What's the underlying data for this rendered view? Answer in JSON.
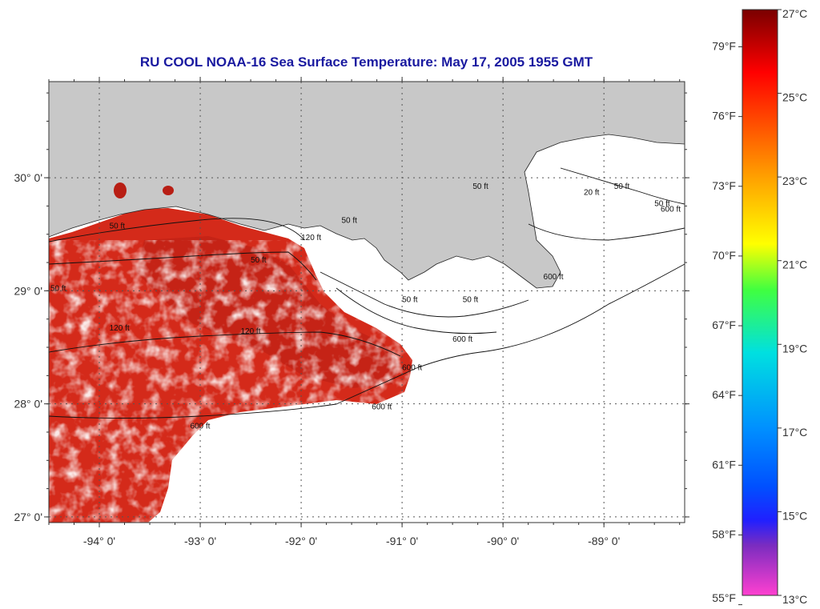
{
  "title": "RU COOL  NOAA-16  Sea Surface Temperature:  May 17, 2005 1955 GMT",
  "colors": {
    "land": "#c8c8c8",
    "sea_missing": "#ffffff",
    "sst_warm": "#d42a1a",
    "title": "#1a1aa0"
  },
  "map": {
    "lon_range": [
      -94.5,
      -88.2
    ],
    "lat_range": [
      26.95,
      30.85
    ],
    "lon_ticks": [
      {
        "value": -94,
        "label": "-94° 0'"
      },
      {
        "value": -93,
        "label": "-93° 0'"
      },
      {
        "value": -92,
        "label": "-92° 0'"
      },
      {
        "value": -91,
        "label": "-91° 0'"
      },
      {
        "value": -90,
        "label": "-90° 0'"
      },
      {
        "value": -89,
        "label": "-89° 0'"
      }
    ],
    "lat_ticks": [
      {
        "value": 30,
        "label": "30° 0'"
      },
      {
        "value": 29,
        "label": "29° 0'"
      },
      {
        "value": 28,
        "label": "28° 0'"
      },
      {
        "value": 27,
        "label": "27° 0'"
      }
    ],
    "grid": true,
    "contour_labels": [
      {
        "text": "50 ft",
        "lon": -90.3,
        "lat": 29.9
      },
      {
        "text": "50 ft",
        "lon": -93.9,
        "lat": 29.55
      },
      {
        "text": "50 ft",
        "lon": -92.5,
        "lat": 29.25
      },
      {
        "text": "50 ft",
        "lon": -94.5,
        "lat": 29.0
      },
      {
        "text": "120 ft",
        "lon": -92.0,
        "lat": 29.45
      },
      {
        "text": "120 ft",
        "lon": -92.6,
        "lat": 28.62
      },
      {
        "text": "120 ft",
        "lon": -93.9,
        "lat": 28.65
      },
      {
        "text": "50 ft",
        "lon": -91.6,
        "lat": 29.6
      },
      {
        "text": "50 ft",
        "lon": -91.0,
        "lat": 28.9
      },
      {
        "text": "50 ft",
        "lon": -90.4,
        "lat": 28.9
      },
      {
        "text": "600 ft",
        "lon": -90.5,
        "lat": 28.55
      },
      {
        "text": "600 ft",
        "lon": -91.0,
        "lat": 28.3
      },
      {
        "text": "600 ft",
        "lon": -93.1,
        "lat": 27.78
      },
      {
        "text": "600 ft",
        "lon": -91.3,
        "lat": 27.95
      },
      {
        "text": "20 ft",
        "lon": -89.2,
        "lat": 29.85
      },
      {
        "text": "50 ft",
        "lon": -88.9,
        "lat": 29.9
      },
      {
        "text": "50 ft",
        "lon": -88.5,
        "lat": 29.75
      },
      {
        "text": "600 ft",
        "lon": -88.3,
        "lat": 29.7
      },
      {
        "text": "600 ft",
        "lon": -89.6,
        "lat": 29.1
      }
    ]
  },
  "colorbar": {
    "celsius": [
      {
        "value": 27,
        "label": "27°C"
      },
      {
        "value": 25,
        "label": "25°C"
      },
      {
        "value": 23,
        "label": "23°C"
      },
      {
        "value": 21,
        "label": "21°C"
      },
      {
        "value": 19,
        "label": "19°C"
      },
      {
        "value": 17,
        "label": "17°C"
      },
      {
        "value": 15,
        "label": "15°C"
      },
      {
        "value": 13,
        "label": "13°C"
      }
    ],
    "fahrenheit": [
      {
        "value": 79,
        "label": "79°F"
      },
      {
        "value": 76,
        "label": "76°F"
      },
      {
        "value": 73,
        "label": "73°F"
      },
      {
        "value": 70,
        "label": "70°F"
      },
      {
        "value": 67,
        "label": "67°F"
      },
      {
        "value": 64,
        "label": "64°F"
      },
      {
        "value": 61,
        "label": "61°F"
      },
      {
        "value": 58,
        "label": "58°F"
      },
      {
        "value": 55,
        "label": "55°F"
      }
    ],
    "range_c": [
      13,
      27
    ],
    "stops": [
      {
        "c": 13,
        "color": "#ff40d0"
      },
      {
        "c": 14.2,
        "color": "#7a2cc0"
      },
      {
        "c": 14.8,
        "color": "#2020ff"
      },
      {
        "c": 15.6,
        "color": "#0050ff"
      },
      {
        "c": 17,
        "color": "#0090ff"
      },
      {
        "c": 18.8,
        "color": "#00e0e0"
      },
      {
        "c": 20.3,
        "color": "#40ff40"
      },
      {
        "c": 21.4,
        "color": "#ffff00"
      },
      {
        "c": 23,
        "color": "#ffa000"
      },
      {
        "c": 24.5,
        "color": "#ff4000"
      },
      {
        "c": 25.5,
        "color": "#ff0000"
      },
      {
        "c": 26.2,
        "color": "#c00000"
      },
      {
        "c": 27,
        "color": "#7a0000"
      }
    ]
  }
}
